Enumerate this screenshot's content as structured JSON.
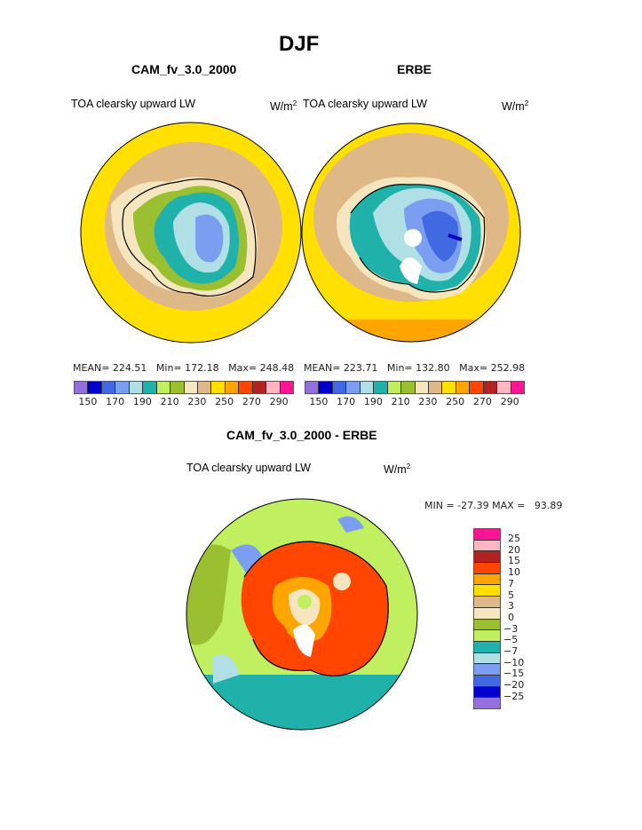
{
  "title": "DJF",
  "panels": [
    {
      "subtitle": "CAM_fv_3.0_2000",
      "left_label": "TOA clearsky upward LW",
      "units_base": "W/m",
      "units_exp": "2",
      "stats": {
        "mean": "MEAN= 224.51",
        "min": "Min= 172.18",
        "max": "Max= 248.48"
      }
    },
    {
      "subtitle": "ERBE",
      "left_label": "TOA clearsky upward LW",
      "units_base": "W/m",
      "units_exp": "2",
      "stats": {
        "mean": "MEAN= 223.71",
        "min": "Min= 132.80",
        "max": "Max= 252.98"
      }
    }
  ],
  "colorbar_top": {
    "colors": [
      "#9370db",
      "#0000cd",
      "#4169e1",
      "#7b9ef0",
      "#b0e0e6",
      "#20b2aa",
      "#c0f060",
      "#9abf30",
      "#f5e6c0",
      "#deb887",
      "#ffe000",
      "#ffa500",
      "#ff4500",
      "#b22222",
      "#ffb6c1",
      "#ff1493"
    ],
    "labels": [
      "150",
      "170",
      "190",
      "210",
      "230",
      "250",
      "270",
      "290"
    ]
  },
  "diff": {
    "subtitle": "CAM_fv_3.0_2000 - ERBE",
    "left_label": "TOA clearsky upward LW",
    "units_base": "W/m",
    "units_exp": "2",
    "minmax": "MIN = -27.39 MAX =   93.89",
    "colorbar": {
      "colors_top_to_bottom": [
        "#ff1493",
        "#ffb6c1",
        "#b22222",
        "#ff4500",
        "#ffa500",
        "#ffe000",
        "#deb887",
        "#f5e6c0",
        "#9abf30",
        "#c0f060",
        "#20b2aa",
        "#b0e0e6",
        "#7b9ef0",
        "#4169e1",
        "#0000cd",
        "#9370db"
      ],
      "labels": [
        "25",
        "20",
        "15",
        "10",
        "7",
        "5",
        "3",
        "0",
        "−3",
        "−5",
        "−7",
        "−10",
        "−15",
        "−20",
        "−25"
      ]
    }
  }
}
